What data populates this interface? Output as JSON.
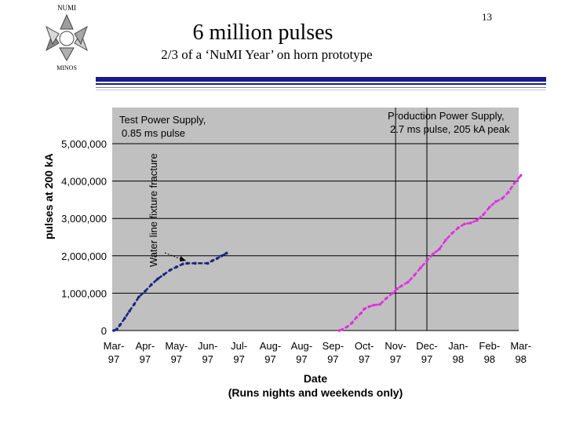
{
  "slide": {
    "logo_top": "NUMI",
    "logo_bottom": "MINOS",
    "title": "6 million pulses",
    "subtitle": "2/3 of a ‘NuMI Year’ on horn prototype",
    "page_number": "13"
  },
  "colors": {
    "plot_bg": "#c0c0c0",
    "test_series": "#1a237e",
    "production_series": "#e030e0",
    "rule": "#1a1a8c"
  },
  "chart_data": {
    "type": "line",
    "xlabel": "Date",
    "xlabel2": "(Runs nights and weekends only)",
    "ylabel": "pulses at 200 kA",
    "x_ticks": [
      "Mar-97",
      "Apr-97",
      "May-97",
      "Jun-97",
      "Jul-97",
      "Aug-97",
      "Aug-97",
      "Sep-97",
      "Oct-97",
      "Nov-97",
      "Dec-97",
      "Jan-98",
      "Feb-98",
      "Mar-98"
    ],
    "x_tick_lines": [
      [
        "Mar-",
        "97"
      ],
      [
        "Apr-",
        "97"
      ],
      [
        "May-",
        "97"
      ],
      [
        "Jun-",
        "97"
      ],
      [
        "Jul-",
        "97"
      ],
      [
        "Aug-",
        "97"
      ],
      [
        "Aug-",
        "97"
      ],
      [
        "Sep-",
        "97"
      ],
      [
        "Oct-",
        "97"
      ],
      [
        "Nov-",
        "97"
      ],
      [
        "Dec-",
        "97"
      ],
      [
        "Jan-",
        "98"
      ],
      [
        "Feb-",
        "98"
      ],
      [
        "Mar-",
        "98"
      ]
    ],
    "y_ticks": [
      "0",
      "1,000,000",
      "2,000,000",
      "3,000,000",
      "4,000,000",
      "5,000,000"
    ],
    "ylim": [
      0,
      5300000
    ],
    "grid": true,
    "series": [
      {
        "x": [
          0.0,
          0.1,
          0.2,
          0.35,
          0.5,
          0.65,
          0.8,
          1.0,
          1.2,
          1.4,
          1.6,
          1.8,
          2.0,
          2.2,
          2.35,
          2.6,
          3.0,
          3.15,
          3.3,
          3.45,
          3.6
        ],
        "y": [
          0,
          40000,
          150000,
          330000,
          520000,
          700000,
          900000,
          1050000,
          1230000,
          1380000,
          1500000,
          1620000,
          1700000,
          1780000,
          1800000,
          1800000,
          1800000,
          1870000,
          1930000,
          2000000,
          2070000
        ]
      },
      {
        "x": [
          7.2,
          7.3,
          7.45,
          7.6,
          7.75,
          7.9,
          8.0,
          8.15,
          8.3,
          8.5,
          8.7,
          8.9,
          9.05,
          9.2,
          9.4,
          9.6,
          9.8,
          10.0,
          10.2,
          10.4,
          10.6,
          10.8,
          11.0,
          11.2,
          11.4,
          11.6,
          11.8,
          12.0,
          12.2,
          12.4,
          12.6,
          12.8,
          13.0
        ],
        "y": [
          0,
          30000,
          100000,
          200000,
          350000,
          470000,
          580000,
          640000,
          680000,
          700000,
          860000,
          1000000,
          1120000,
          1200000,
          1300000,
          1480000,
          1680000,
          1870000,
          2050000,
          2180000,
          2420000,
          2600000,
          2750000,
          2850000,
          2880000,
          2950000,
          3100000,
          3300000,
          3450000,
          3530000,
          3700000,
          3950000,
          4150000
        ]
      }
    ],
    "vertical_lines_x": [
      9.0,
      10.0
    ],
    "annotations": [
      {
        "lines": [
          "Test Power Supply,",
          "0.85 ms pulse"
        ]
      },
      {
        "lines": [
          "Production Power Supply,",
          "2.7 ms pulse, 205 kA peak"
        ]
      },
      {
        "lines": [
          "Water line fixture fracture"
        ]
      }
    ]
  }
}
